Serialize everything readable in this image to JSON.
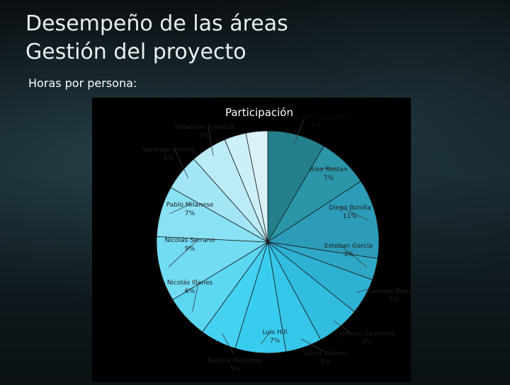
{
  "header": {
    "title_line1": "Desempeño de las áreas",
    "title_line2": "Gestión del proyecto",
    "subtitle": "Horas por persona:"
  },
  "chart_data": {
    "type": "pie",
    "title": "Participación",
    "slices": [
      {
        "label": "Alejandro Gagliardi",
        "value": 8,
        "value_label": "8%",
        "color": "#237f8c"
      },
      {
        "label": "Alex Rostan",
        "value": 7,
        "value_label": "7%",
        "color": "#2a96a8"
      },
      {
        "label": "Diego Bonilla",
        "value": 11,
        "value_label": "11%",
        "color": "#2c9cb8"
      },
      {
        "label": "Esteban García",
        "value": 3,
        "value_label": "3%",
        "color": "#2ea8c6"
      },
      {
        "label": "Gonzalo Biassini",
        "value": 5,
        "value_label": "5%",
        "color": "#2eb2d4"
      },
      {
        "label": "Ignacio Goyetche",
        "value": 6,
        "value_label": "6%",
        "color": "#31bde0"
      },
      {
        "label": "Laura Marroni",
        "value": 5,
        "value_label": "5%",
        "color": "#35c6e9"
      },
      {
        "label": "Luis Hill",
        "value": 7,
        "value_label": "7%",
        "color": "#38cdf0"
      },
      {
        "label": "Natalia Pavlotzky",
        "value": 5,
        "value_label": "5%",
        "color": "#45d1f1"
      },
      {
        "label": "Nicolás Illanes",
        "value": 6,
        "value_label": "6%",
        "color": "#5cd7f2"
      },
      {
        "label": "Nicolás Serrano",
        "value": 9,
        "value_label": "9%",
        "color": "#72dcf3"
      },
      {
        "label": "Pablo Milanese",
        "value": 7,
        "value_label": "7%",
        "color": "#89e1f4"
      },
      {
        "label": "Santiago Gómez",
        "value": 5,
        "value_label": "5%",
        "color": "#a2e6f5"
      },
      {
        "label": "Sebastian Fonseca",
        "value": 5,
        "value_label": "5%",
        "color": "#bbebf7"
      },
      {
        "label": "",
        "value": 3,
        "value_label": "",
        "color": "#cdeff8"
      },
      {
        "label": "",
        "value": 3,
        "value_label": "",
        "color": "#d9f2fa"
      }
    ]
  }
}
